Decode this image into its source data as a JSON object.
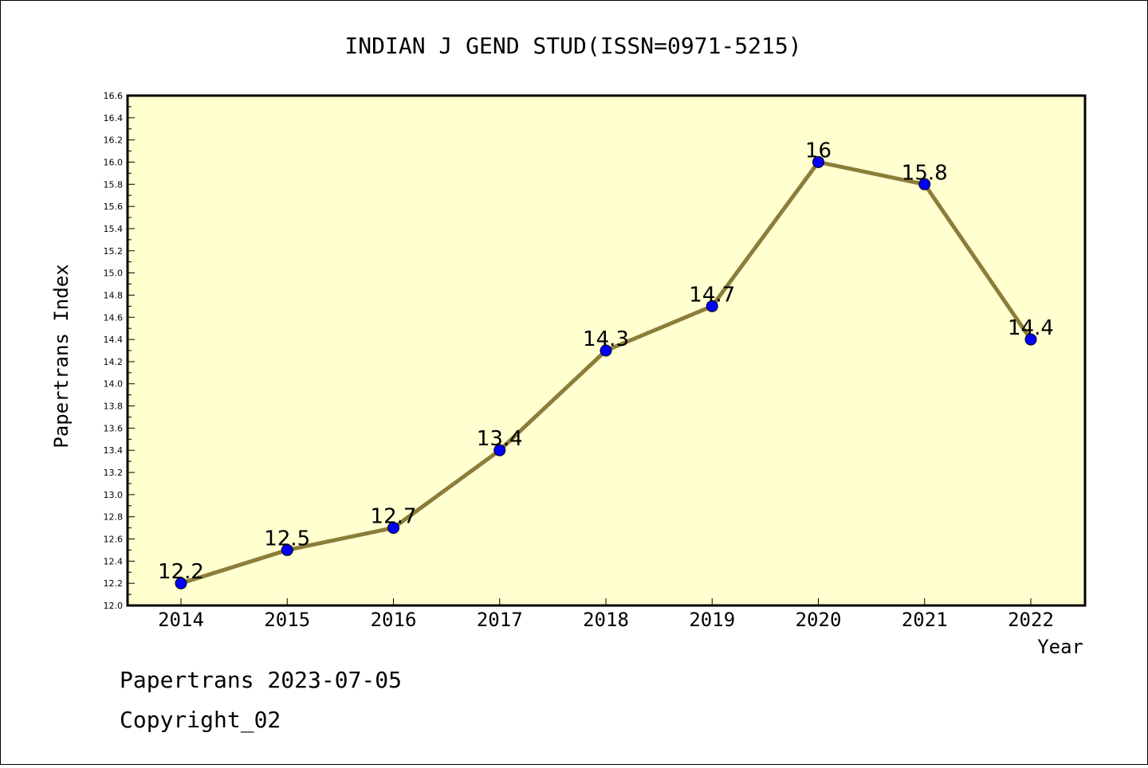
{
  "chart_data": {
    "type": "line",
    "title": "INDIAN J GEND STUD(ISSN=0971-5215)",
    "xlabel": "Year",
    "ylabel": "Papertrans Index",
    "categories": [
      "2014",
      "2015",
      "2016",
      "2017",
      "2018",
      "2019",
      "2020",
      "2021",
      "2022"
    ],
    "values": [
      12.2,
      12.5,
      12.7,
      13.4,
      14.3,
      14.7,
      16,
      15.8,
      14.4
    ],
    "data_labels": [
      "12.2",
      "12.5",
      "12.7",
      "13.4",
      "14.3",
      "14.7",
      "16",
      "15.8",
      "14.4"
    ],
    "ylim": [
      12.0,
      16.6
    ],
    "yticks": [
      "12.0",
      "12.2",
      "12.4",
      "12.6",
      "12.8",
      "13.0",
      "13.2",
      "13.4",
      "13.6",
      "13.8",
      "14.0",
      "14.2",
      "14.4",
      "14.6",
      "14.8",
      "15.0",
      "15.2",
      "15.4",
      "15.6",
      "15.8",
      "16.0",
      "16.2",
      "16.4",
      "16.6"
    ],
    "grid": false,
    "colors": {
      "plot_background": "#ffffd0",
      "line": "#8b7d3a",
      "marker": "#0000ff"
    }
  },
  "footer": {
    "line1": "Papertrans 2023-07-05",
    "line2": "Copyright_02"
  }
}
